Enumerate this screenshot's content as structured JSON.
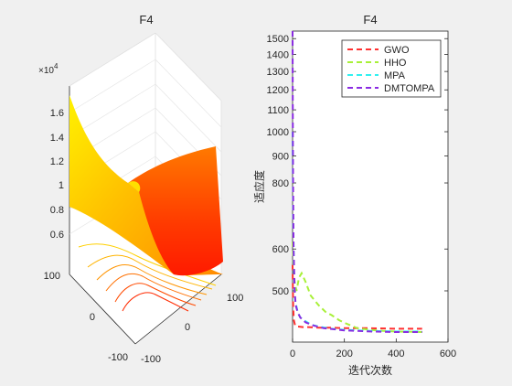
{
  "colors": {
    "figure_bg": "#f0f0f0",
    "axes_bg": "#ffffff",
    "axis": "#262626",
    "grid": "#e6e6e6",
    "surface_top": "#ffd400",
    "surface_mid": "#ff8a00",
    "surface_low": "#ff2a00"
  },
  "chart_data": [
    {
      "type": "surface",
      "title": "F4",
      "z_exponent_label": "×10",
      "z_exponent": "4",
      "z_ticks": [
        "1.6",
        "1.4",
        "1.2",
        "1",
        "0.8",
        "0.6"
      ],
      "x_ticks": [
        "100",
        "0",
        "-100"
      ],
      "y_ticks": [
        "100",
        "0",
        "-100"
      ],
      "xlim": [
        -100,
        100
      ],
      "ylim": [
        -100,
        100
      ],
      "zlim": [
        0.5,
        1.7
      ],
      "colormap": "autumn",
      "contours": true,
      "grid": true
    },
    {
      "type": "line",
      "title": "F4",
      "xlabel": "迭代次数",
      "ylabel": "适应度",
      "xlim": [
        0,
        600
      ],
      "ylim": [
        400,
        1550
      ],
      "y_scale": "log",
      "x_ticks": [
        0,
        200,
        400,
        600
      ],
      "y_ticks": [
        500,
        600,
        800,
        900,
        1000,
        1100,
        1200,
        1300,
        1400,
        1500
      ],
      "legend_position": "top-right",
      "series": [
        {
          "name": "GWO",
          "color": "#ff3030",
          "dash": "6,4",
          "x": [
            0,
            2,
            5,
            10,
            20,
            40,
            60,
            100,
            150,
            200,
            250,
            300,
            400,
            500
          ],
          "y": [
            560,
            470,
            440,
            430,
            428,
            427,
            427,
            426,
            426,
            425,
            425,
            425,
            424,
            424
          ]
        },
        {
          "name": "HHO",
          "color": "#a8f038",
          "dash": "6,4",
          "x": [
            0,
            3,
            8,
            15,
            25,
            35,
            50,
            70,
            100,
            130,
            150,
            180,
            200,
            250,
            300,
            350,
            400,
            500
          ],
          "y": [
            620,
            560,
            520,
            500,
            530,
            540,
            520,
            490,
            470,
            455,
            450,
            440,
            435,
            425,
            422,
            420,
            419,
            418
          ]
        },
        {
          "name": "MPA",
          "color": "#30f0f0",
          "dash": "6,4",
          "x": [
            0,
            2,
            5,
            10,
            20,
            30,
            50,
            70,
            100,
            150,
            200,
            300,
            400,
            500
          ],
          "y": [
            1000,
            700,
            560,
            480,
            455,
            445,
            438,
            432,
            428,
            424,
            422,
            420,
            419,
            419
          ]
        },
        {
          "name": "DMTOMPA",
          "color": "#8a2be2",
          "dash": "6,4",
          "x": [
            0,
            1,
            2,
            4,
            8,
            12,
            20,
            30,
            50,
            80,
            120,
            200,
            300,
            400,
            500
          ],
          "y": [
            1550,
            1000,
            780,
            600,
            500,
            470,
            455,
            445,
            436,
            430,
            425,
            421,
            419,
            418,
            418
          ]
        }
      ]
    }
  ]
}
